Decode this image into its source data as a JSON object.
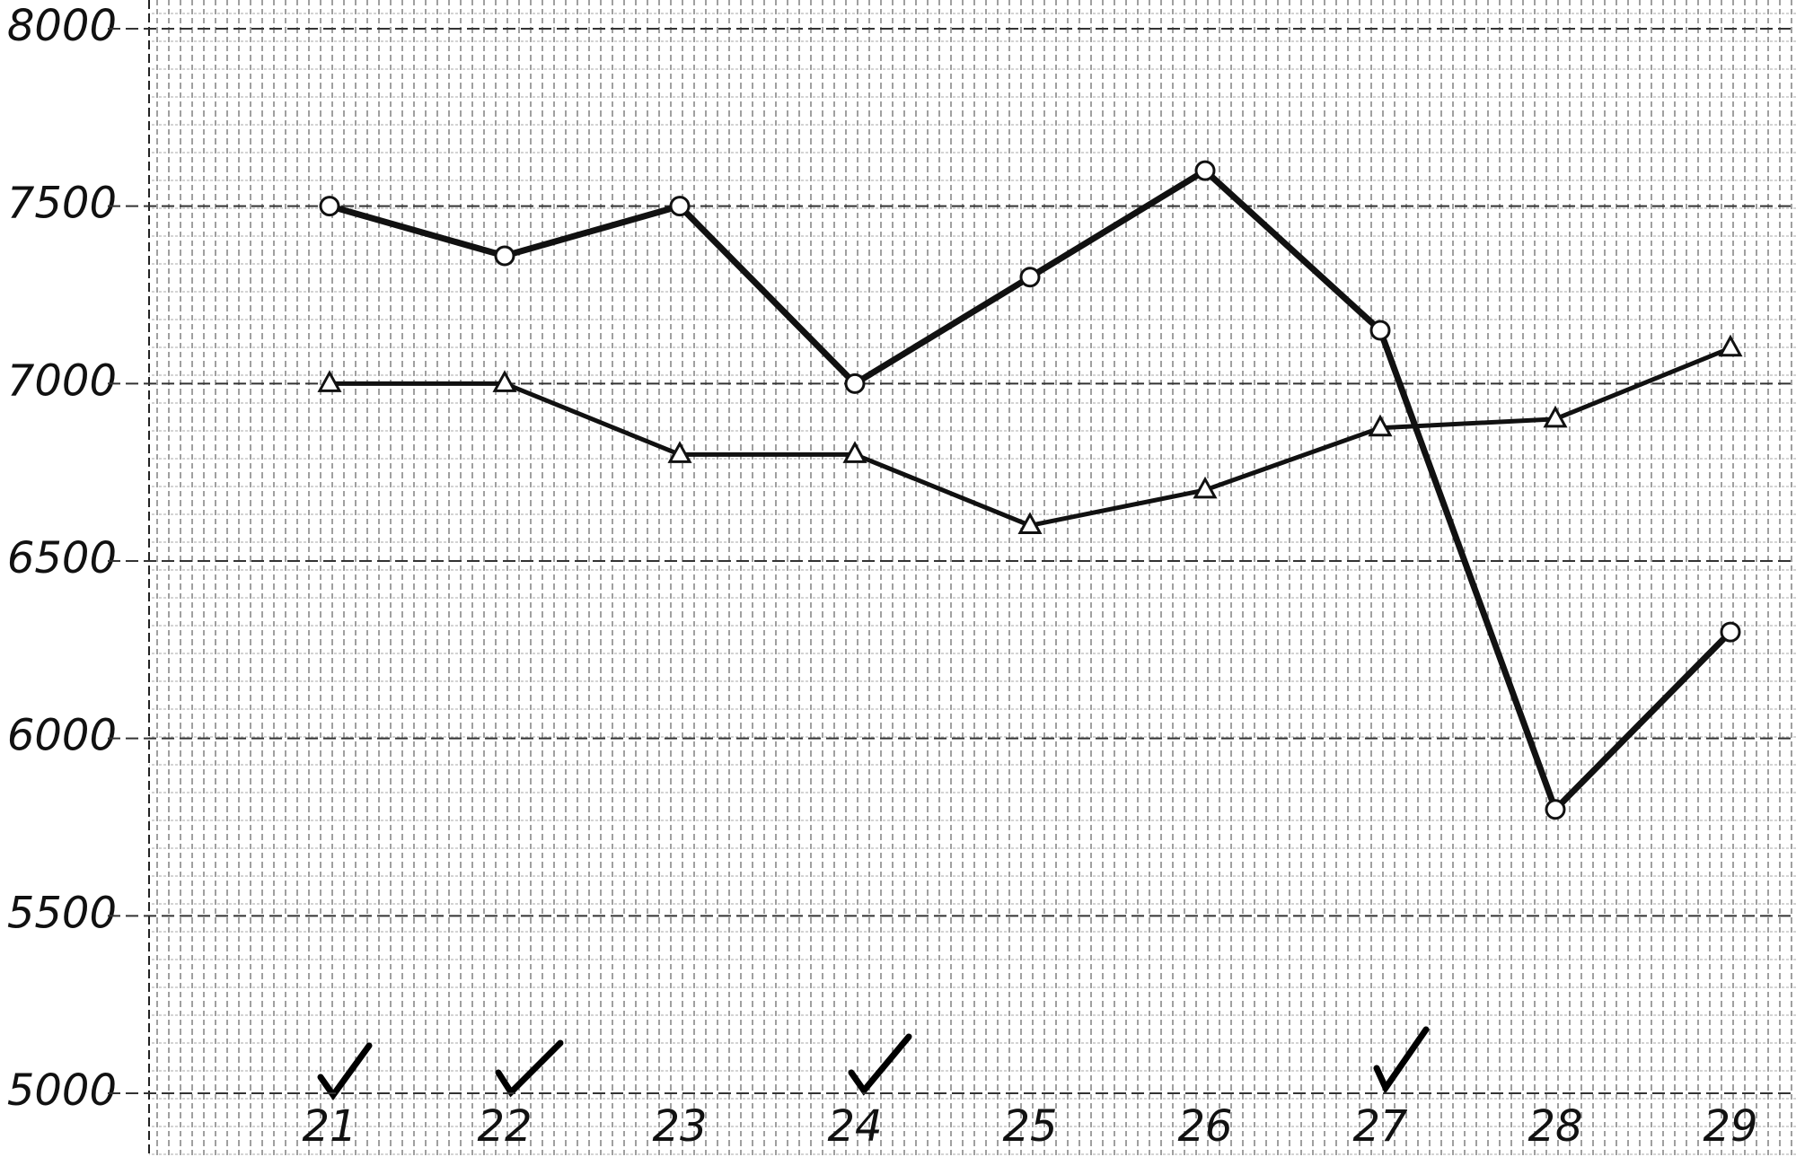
{
  "chart_data": {
    "type": "line",
    "categories": [
      "21",
      "22",
      "23",
      "24",
      "25",
      "26",
      "27",
      "28",
      "29"
    ],
    "series": [
      {
        "color": "#111111",
        "marker": "circle",
        "values": [
          7500,
          7360,
          7500,
          7000,
          7300,
          7600,
          7150,
          5800,
          6300
        ]
      },
      {
        "color": "#111111",
        "marker": "triangle",
        "values": [
          7000,
          7000,
          6800,
          6800,
          6600,
          6700,
          6875,
          6900,
          7100
        ]
      }
    ],
    "ylim": [
      5000,
      8000
    ],
    "yticks": [
      5000,
      5500,
      6000,
      6500,
      7000,
      7500,
      8000
    ],
    "grid": true
  }
}
